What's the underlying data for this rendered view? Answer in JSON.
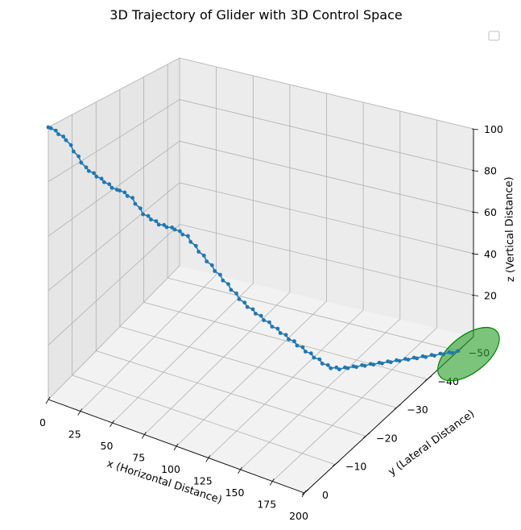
{
  "chart_data": {
    "type": "line",
    "projection": "3d",
    "title": "3D Trajectory of Glider with 3D Control Space",
    "xlabel": "x (Horizontal Distance)",
    "ylabel": "y (Lateral Distance)",
    "zlabel": "z (Vertical Distance)",
    "xlim": [
      0,
      200
    ],
    "ylim": [
      -55,
      0
    ],
    "zlim": [
      0,
      100
    ],
    "xticks": [
      "0",
      "25",
      "50",
      "75",
      "100",
      "125",
      "150",
      "175",
      "200"
    ],
    "yticks": [
      "0",
      "−10",
      "−20",
      "−30",
      "−40",
      "−50"
    ],
    "zticks": [
      "20",
      "40",
      "60",
      "80",
      "100"
    ],
    "grid": true,
    "legend": "upper-right (empty)",
    "colors": {
      "trajectory": "#1f77b4",
      "control_space": "#2ca02c",
      "control_space_edge": "#008000"
    },
    "series": [
      {
        "style": "line-with-dot-markers",
        "x": [
          0,
          2,
          4,
          6,
          8,
          10,
          12,
          14,
          16,
          18,
          20,
          22,
          24,
          26,
          28,
          30,
          32,
          34,
          36,
          38,
          40,
          42,
          44,
          46,
          48,
          50,
          52,
          54,
          56,
          58,
          60,
          62,
          64,
          66,
          68,
          70,
          72,
          74,
          76,
          78,
          80,
          82,
          84,
          86,
          88,
          90,
          92,
          94,
          96,
          98,
          100,
          102,
          104,
          106,
          108,
          110,
          112,
          114,
          116,
          118,
          120,
          122,
          124,
          126,
          128,
          130,
          132,
          134,
          136,
          138,
          140,
          142,
          144,
          146,
          148,
          150,
          152,
          154,
          156,
          158,
          160,
          162,
          164,
          166,
          168,
          170,
          172,
          174,
          176,
          178,
          180,
          182,
          184,
          186,
          188,
          190,
          192,
          194,
          196,
          198,
          200
        ],
        "y": [
          0,
          0,
          -1,
          -1,
          -2,
          -2,
          -3,
          -3,
          -4,
          -4,
          -5,
          -5,
          -6,
          -6,
          -7,
          -7,
          -8,
          -8,
          -9,
          -9,
          -10,
          -10,
          -11,
          -11,
          -12,
          -12,
          -13,
          -13,
          -14,
          -14,
          -15,
          -15,
          -16,
          -16,
          -17,
          -17,
          -18,
          -18,
          -19,
          -19,
          -20,
          -20,
          -21,
          -21,
          -22,
          -22,
          -23,
          -23,
          -24,
          -24,
          -25,
          -25,
          -26,
          -26,
          -27,
          -27,
          -28,
          -28,
          -29,
          -29,
          -30,
          -30,
          -31,
          -31,
          -32,
          -32,
          -33,
          -33,
          -34,
          -34,
          -35,
          -35,
          -36,
          -36,
          -37,
          -37,
          -38,
          -38,
          -39,
          -39,
          -40,
          -40,
          -41,
          -41,
          -42,
          -42,
          -43,
          -43,
          -44,
          -44,
          -45,
          -45,
          -46,
          -46,
          -47,
          -47,
          -48,
          -48,
          -49,
          -49,
          -50
        ],
        "z": [
          100,
          100,
          99,
          98,
          97,
          96,
          94,
          92,
          90,
          88,
          86,
          85,
          84,
          83,
          82,
          81,
          80,
          79,
          78,
          78,
          77,
          76,
          75,
          73,
          71,
          69,
          68,
          67,
          66,
          65,
          64.5,
          64,
          63.5,
          63,
          62,
          61,
          60,
          58,
          56,
          54,
          52,
          50,
          48,
          46,
          44,
          42,
          40,
          38,
          36,
          34,
          32,
          30.5,
          29,
          27.5,
          26,
          24.5,
          23,
          21.5,
          20,
          18.5,
          17,
          15.5,
          14,
          12.5,
          11,
          9.5,
          8,
          6.5,
          5,
          3.5,
          2,
          1,
          0.5,
          0,
          0,
          0,
          0,
          0,
          0,
          0,
          0,
          0,
          0,
          0,
          0,
          0,
          0,
          0,
          0,
          0,
          0,
          0,
          0,
          0,
          0,
          0,
          0,
          0,
          0,
          0,
          0
        ]
      }
    ],
    "control_space": {
      "shape": "ellipse",
      "center": [
        200,
        -50,
        0
      ]
    }
  }
}
